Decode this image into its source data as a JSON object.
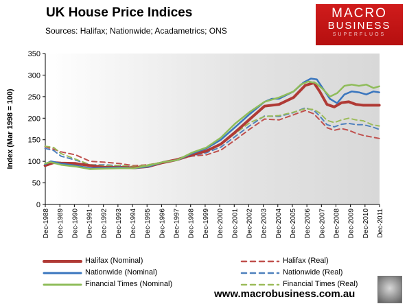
{
  "header": {
    "title": "UK House Price Indices",
    "subtitle": "Sources: Halifax; Nationwide; Acadametrics; ONS"
  },
  "logo": {
    "line1": "MACRO",
    "line2": "BUSINESS",
    "line3": "SUPERFLUOS"
  },
  "footer": {
    "url": "www.macrobusiness.com.au"
  },
  "chart_data": {
    "type": "line",
    "ylabel": "Index (Mar 1998 = 100)",
    "ylim": [
      0,
      350
    ],
    "yticks": [
      0,
      50,
      100,
      150,
      200,
      250,
      300,
      350
    ],
    "xlim": [
      1988.917,
      2011.917
    ],
    "xticks": [
      "Dec-1988",
      "Dec-1989",
      "Dec-1990",
      "Dec-1991",
      "Dec-1992",
      "Dec-1993",
      "Dec-1994",
      "Dec-1995",
      "Dec-1996",
      "Dec-1997",
      "Dec-1998",
      "Dec-1999",
      "Dec-2000",
      "Dec-2001",
      "Dec-2002",
      "Dec-2003",
      "Dec-2004",
      "Dec-2005",
      "Dec-2006",
      "Dec-2007",
      "Dec-2008",
      "Dec-2009",
      "Dec-2010",
      "Dec-2011"
    ],
    "grid": false,
    "legend": "bottom",
    "series": [
      {
        "name": "Halifax (Nominal)",
        "color": "#b03a35",
        "dash": false,
        "width": 4,
        "x": [
          1988.9,
          1989.5,
          1990,
          1991,
          1992,
          1993,
          1994,
          1995,
          1996,
          1997,
          1998,
          1999,
          2000,
          2001,
          2002,
          2003,
          2004,
          2005,
          2006,
          2006.8,
          2007.4,
          2007.8,
          2008.3,
          2008.8,
          2009.3,
          2009.8,
          2010.3,
          2010.8,
          2011.9
        ],
        "y": [
          90,
          97,
          96,
          95,
          90,
          86,
          86,
          85,
          88,
          97,
          104,
          115,
          124,
          140,
          168,
          198,
          228,
          232,
          248,
          276,
          282,
          262,
          232,
          226,
          236,
          238,
          232,
          230,
          230
        ]
      },
      {
        "name": "Halifax (Real)",
        "color": "#c0504d",
        "dash": true,
        "width": 2,
        "x": [
          1988.9,
          1989.5,
          1990,
          1991,
          1992,
          1993,
          1994,
          1995,
          1996,
          1997,
          1998,
          1999,
          2000,
          2001,
          2002,
          2003,
          2004,
          2005,
          2006,
          2006.8,
          2007.4,
          2007.8,
          2008.3,
          2008.8,
          2009.3,
          2009.8,
          2010.3,
          2010.8,
          2011.9
        ],
        "y": [
          134,
          128,
          122,
          115,
          100,
          98,
          95,
          90,
          92,
          98,
          104,
          112,
          115,
          126,
          150,
          175,
          198,
          196,
          208,
          218,
          210,
          196,
          178,
          172,
          176,
          172,
          165,
          160,
          153
        ]
      },
      {
        "name": "Nationwide (Nominal)",
        "color": "#3a76be",
        "dash": false,
        "width": 2.5,
        "x": [
          1988.9,
          1989.3,
          1990,
          1991,
          1992,
          1993,
          1994,
          1995,
          1996,
          1997,
          1998,
          1999,
          2000,
          2001,
          2002,
          2003,
          2004,
          2004.5,
          2005,
          2006,
          2006.7,
          2007.2,
          2007.6,
          2008,
          2008.5,
          2009,
          2009.5,
          2010,
          2010.5,
          2011,
          2011.5,
          2011.9
        ],
        "y": [
          93,
          100,
          95,
          90,
          84,
          85,
          86,
          84,
          88,
          98,
          103,
          118,
          130,
          150,
          180,
          210,
          238,
          245,
          245,
          262,
          283,
          292,
          290,
          270,
          245,
          235,
          255,
          262,
          260,
          255,
          262,
          260
        ]
      },
      {
        "name": "Nationwide (Real)",
        "color": "#4f81bd",
        "dash": true,
        "width": 2,
        "x": [
          1988.9,
          1989.5,
          1990,
          1991,
          1992,
          1993,
          1994,
          1995,
          1996,
          1997,
          1998,
          1999,
          2000,
          2001,
          2002,
          2003,
          2004,
          2005,
          2006,
          2006.8,
          2007.4,
          2007.8,
          2008.3,
          2008.8,
          2009.3,
          2009.8,
          2010.3,
          2010.8,
          2011.4,
          2011.9
        ],
        "y": [
          130,
          125,
          112,
          103,
          92,
          92,
          90,
          87,
          90,
          98,
          103,
          113,
          120,
          133,
          158,
          183,
          205,
          204,
          213,
          224,
          218,
          205,
          185,
          180,
          186,
          188,
          185,
          185,
          180,
          174
        ]
      },
      {
        "name": "Financial Times (Nominal)",
        "color": "#8fbc5a",
        "dash": false,
        "width": 2.5,
        "x": [
          1988.9,
          1989.3,
          1990,
          1991,
          1992,
          1993,
          1994,
          1995,
          1996,
          1997,
          1998,
          1999,
          2000,
          2001,
          2002,
          2003,
          2004,
          2005,
          2006,
          2006.5,
          2007,
          2007.5,
          2008,
          2008.5,
          2009,
          2009.5,
          2010,
          2010.5,
          2011,
          2011.5,
          2011.9
        ],
        "y": [
          95,
          98,
          92,
          88,
          82,
          83,
          84,
          84,
          90,
          98,
          103,
          120,
          132,
          155,
          188,
          215,
          238,
          248,
          262,
          278,
          285,
          282,
          268,
          250,
          258,
          275,
          278,
          275,
          278,
          270,
          274
        ]
      },
      {
        "name": "Financial Times (Real)",
        "color": "#9bbb59",
        "dash": true,
        "width": 2,
        "x": [
          1988.9,
          1989.5,
          1990,
          1991,
          1992,
          1993,
          1994,
          1995,
          1996,
          1997,
          1998,
          1999,
          2000,
          2001,
          2002,
          2003,
          2004,
          2005,
          2006,
          2006.8,
          2007.4,
          2007.8,
          2008.3,
          2008.8,
          2009.3,
          2009.8,
          2010.3,
          2010.8,
          2011.4,
          2011.9
        ],
        "y": [
          135,
          132,
          118,
          105,
          92,
          90,
          90,
          88,
          92,
          98,
          103,
          115,
          123,
          140,
          165,
          190,
          204,
          206,
          214,
          222,
          220,
          212,
          195,
          190,
          196,
          200,
          196,
          194,
          185,
          182
        ]
      }
    ]
  }
}
